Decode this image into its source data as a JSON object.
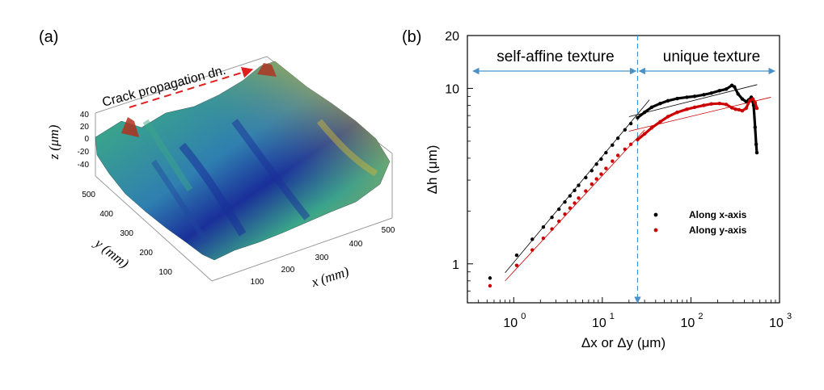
{
  "panel_a": {
    "label": "(a)",
    "arrow_label": "Crack propagation dn.",
    "z_axis": {
      "name": "z",
      "unit": "(μm)",
      "ticks": [
        "40",
        "20",
        "0",
        "-20",
        "-40"
      ]
    },
    "y_axis": {
      "name": "y",
      "unit": "(mm)",
      "ticks": [
        "500",
        "400",
        "300",
        "200",
        "100"
      ]
    },
    "x_axis": {
      "name": "x",
      "unit": "(mm)",
      "ticks": [
        "100",
        "200",
        "300",
        "400",
        "500"
      ]
    },
    "colormap": {
      "low": "#1a2f9a",
      "mid_low": "#2f7fb0",
      "mid": "#3aa58a",
      "mid_high": "#c9b33a",
      "high": "#b0301e"
    }
  },
  "chart_data": {
    "type": "scatter",
    "panel_label": "(b)",
    "title": "",
    "xlabel": "Δx or Δy (μm)",
    "ylabel": "Δh (μm)",
    "xscale": "log",
    "yscale": "log",
    "xlim": [
      0.3,
      1000
    ],
    "ylim": [
      0.6,
      20
    ],
    "x_ticks": [
      {
        "v": 1,
        "label": "10"
      },
      {
        "v": 10,
        "label": "10"
      },
      {
        "v": 100,
        "label": "10"
      },
      {
        "v": 1000,
        "label": "10"
      }
    ],
    "x_tick_exponents": [
      "0",
      "1",
      "2",
      "3"
    ],
    "y_ticks": [
      {
        "v": 1,
        "label": "1"
      },
      {
        "v": 10,
        "label": "10"
      },
      {
        "v": 20,
        "label": "20"
      }
    ],
    "crossover_x": 25,
    "regions": {
      "left": "self-affine texture",
      "right": "unique texture"
    },
    "legend": {
      "position": "center-right",
      "entries": [
        "Along x-axis",
        "Along y-axis"
      ]
    },
    "series": [
      {
        "name": "Along x-axis",
        "color": "#000000",
        "x": [
          0.54,
          1.08,
          1.62,
          2.16,
          2.7,
          3.24,
          3.78,
          4.32,
          4.86,
          5.4,
          6.5,
          7.6,
          8.6,
          9.7,
          11,
          13,
          15,
          18,
          21,
          25,
          30,
          36,
          45,
          55,
          70,
          90,
          110,
          140,
          170,
          210,
          250,
          290,
          310,
          340,
          380,
          420,
          450,
          480,
          510,
          530,
          545,
          555
        ],
        "y": [
          0.83,
          1.12,
          1.38,
          1.62,
          1.84,
          2.05,
          2.25,
          2.44,
          2.62,
          2.8,
          3.1,
          3.4,
          3.7,
          3.95,
          4.3,
          4.75,
          5.2,
          5.8,
          6.3,
          6.8,
          7.3,
          7.8,
          8.2,
          8.5,
          8.75,
          8.9,
          9.0,
          9.2,
          9.4,
          9.7,
          9.9,
          10.4,
          10.2,
          9.3,
          8.7,
          8.4,
          8.6,
          8.9,
          8.0,
          6.0,
          4.8,
          4.3
        ]
      },
      {
        "name": "Along y-axis",
        "color": "#cc0000",
        "x": [
          0.54,
          1.08,
          1.62,
          2.16,
          2.7,
          3.24,
          3.78,
          4.32,
          4.86,
          5.4,
          6.5,
          7.6,
          8.6,
          9.7,
          11,
          13,
          15,
          18,
          21,
          25,
          30,
          36,
          45,
          55,
          70,
          90,
          110,
          140,
          170,
          210,
          250,
          290,
          320,
          350,
          380,
          420,
          460,
          500,
          530,
          555
        ],
        "y": [
          0.75,
          0.98,
          1.2,
          1.4,
          1.58,
          1.75,
          1.92,
          2.08,
          2.22,
          2.37,
          2.6,
          2.85,
          3.05,
          3.25,
          3.5,
          3.85,
          4.15,
          4.5,
          4.8,
          5.1,
          5.5,
          5.95,
          6.45,
          6.9,
          7.3,
          7.6,
          7.8,
          8.0,
          8.15,
          8.2,
          8.1,
          7.75,
          7.6,
          7.55,
          7.45,
          7.7,
          8.5,
          8.7,
          8.3,
          7.7
        ]
      }
    ],
    "fit_lines": [
      {
        "series": "Along x-axis",
        "color": "#000000",
        "x": [
          0.8,
          34
        ],
        "y": [
          0.89,
          8.6
        ]
      },
      {
        "series": "Along x-axis",
        "color": "#000000",
        "x": [
          20,
          560
        ],
        "y": [
          6.9,
          10.5
        ]
      },
      {
        "series": "Along y-axis",
        "color": "#cc0000",
        "x": [
          0.8,
          30
        ],
        "y": [
          0.8,
          5.8
        ]
      },
      {
        "series": "Along y-axis",
        "color": "#cc0000",
        "x": [
          20,
          800
        ],
        "y": [
          5.7,
          8.9
        ]
      }
    ]
  }
}
